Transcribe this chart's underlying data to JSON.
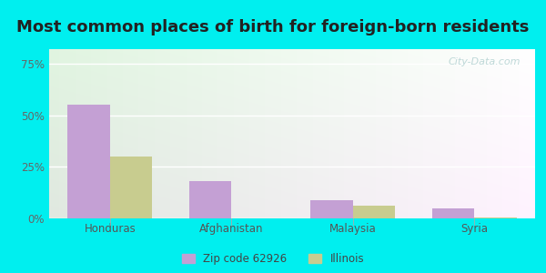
{
  "title": "Most common places of birth for foreign-born residents",
  "categories": [
    "Honduras",
    "Afghanistan",
    "Malaysia",
    "Syria"
  ],
  "zip_values": [
    55.0,
    18.0,
    9.0,
    5.0
  ],
  "il_values": [
    30.0,
    0.0,
    6.0,
    0.5
  ],
  "zip_color": "#c4a0d4",
  "il_color": "#c8cc8f",
  "yticks": [
    0,
    25,
    50,
    75
  ],
  "ylim": [
    0,
    82
  ],
  "legend_zip": "Zip code 62926",
  "legend_il": "Illinois",
  "bg_outer": "#00efef",
  "watermark": "City-Data.com",
  "bar_width": 0.35,
  "title_fontsize": 13
}
